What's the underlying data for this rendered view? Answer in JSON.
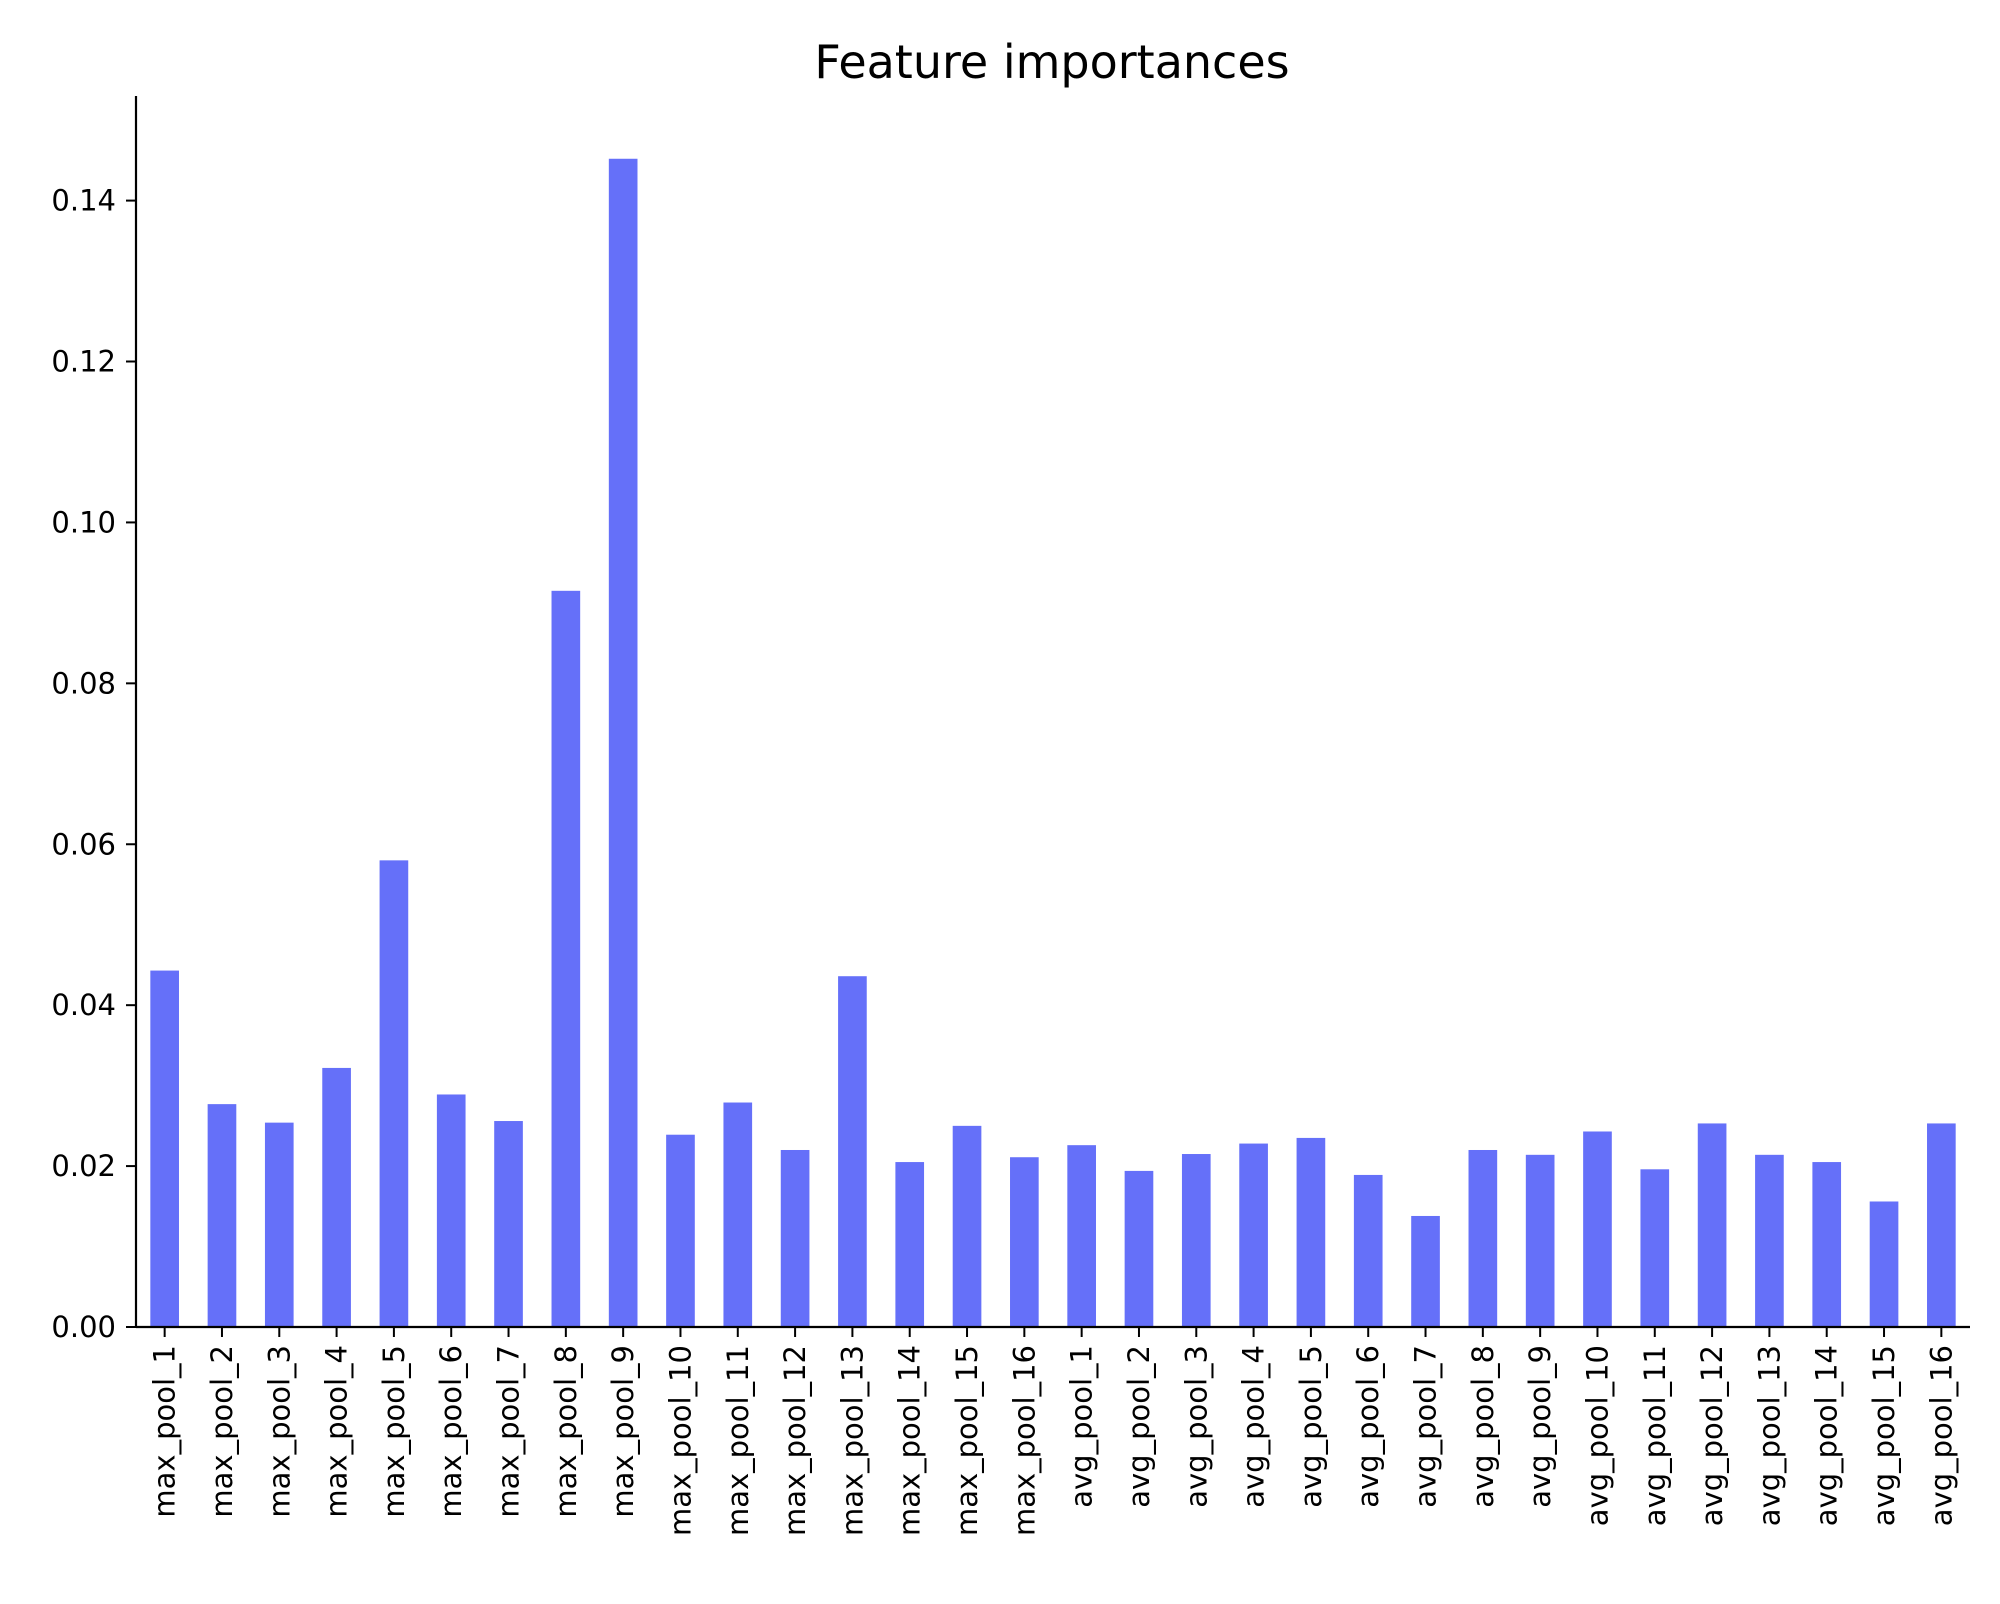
{
  "chart_data": {
    "type": "bar",
    "title": "Feature importances",
    "xlabel": "",
    "ylabel": "",
    "ylim": [
      0,
      0.153
    ],
    "yticks": [
      0.0,
      0.02,
      0.04,
      0.06,
      0.08,
      0.1,
      0.12,
      0.14
    ],
    "ytick_labels": [
      "0.00",
      "0.02",
      "0.04",
      "0.06",
      "0.08",
      "0.10",
      "0.12",
      "0.14"
    ],
    "grid": false,
    "legend": "none",
    "bar_color": "#6570f9",
    "categories": [
      "max_pool_1",
      "max_pool_2",
      "max_pool_3",
      "max_pool_4",
      "max_pool_5",
      "max_pool_6",
      "max_pool_7",
      "max_pool_8",
      "max_pool_9",
      "max_pool_10",
      "max_pool_11",
      "max_pool_12",
      "max_pool_13",
      "max_pool_14",
      "max_pool_15",
      "max_pool_16",
      "avg_pool_1",
      "avg_pool_2",
      "avg_pool_3",
      "avg_pool_4",
      "avg_pool_5",
      "avg_pool_6",
      "avg_pool_7",
      "avg_pool_8",
      "avg_pool_9",
      "avg_pool_10",
      "avg_pool_11",
      "avg_pool_12",
      "avg_pool_13",
      "avg_pool_14",
      "avg_pool_15",
      "avg_pool_16"
    ],
    "values": [
      0.0443,
      0.0277,
      0.0254,
      0.0322,
      0.058,
      0.0289,
      0.0256,
      0.0915,
      0.1452,
      0.0239,
      0.0279,
      0.022,
      0.0436,
      0.0205,
      0.025,
      0.0211,
      0.0226,
      0.0194,
      0.0215,
      0.0228,
      0.0235,
      0.0189,
      0.0138,
      0.022,
      0.0214,
      0.0243,
      0.0196,
      0.0253,
      0.0214,
      0.0205,
      0.0156,
      0.0253
    ]
  }
}
